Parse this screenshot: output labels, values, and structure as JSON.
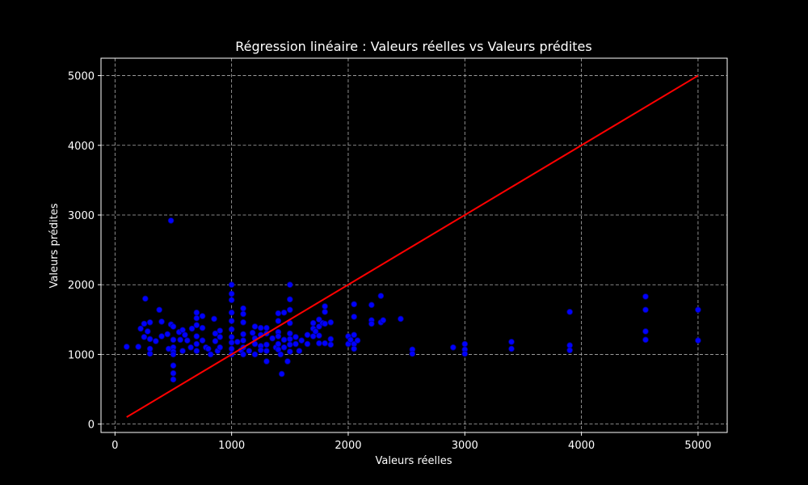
{
  "chart_data": {
    "type": "scatter",
    "title": "Régression linéaire : Valeurs réelles vs Valeurs prédites",
    "xlabel": "Valeurs réelles",
    "ylabel": "Valeurs prédites",
    "xlim": [
      -120,
      5250
    ],
    "ylim": [
      -120,
      5250
    ],
    "xticks": [
      0,
      1000,
      2000,
      3000,
      4000,
      5000
    ],
    "yticks": [
      0,
      1000,
      2000,
      3000,
      4000,
      5000
    ],
    "xtick_labels": [
      "0",
      "1000",
      "2000",
      "3000",
      "4000",
      "5000"
    ],
    "ytick_labels": [
      "0",
      "1000",
      "2000",
      "3000",
      "4000",
      "5000"
    ],
    "grid": true,
    "colors": {
      "background": "#000000",
      "points": "#0000ff",
      "point_edge": "#00008b",
      "line": "#ff0000",
      "text": "#ffffff"
    },
    "reference_line": {
      "name": "",
      "x": [
        100,
        5000
      ],
      "y": [
        100,
        5000
      ]
    },
    "series": [
      {
        "name": "",
        "points": [
          [
            100,
            1110
          ],
          [
            200,
            1110
          ],
          [
            220,
            1370
          ],
          [
            260,
            1800
          ],
          [
            250,
            1250
          ],
          [
            250,
            1440
          ],
          [
            280,
            1330
          ],
          [
            300,
            1220
          ],
          [
            300,
            1010
          ],
          [
            300,
            1460
          ],
          [
            300,
            1080
          ],
          [
            350,
            1190
          ],
          [
            380,
            1640
          ],
          [
            400,
            1470
          ],
          [
            400,
            1260
          ],
          [
            450,
            1290
          ],
          [
            460,
            1080
          ],
          [
            480,
            1430
          ],
          [
            480,
            2920
          ],
          [
            500,
            1400
          ],
          [
            500,
            1210
          ],
          [
            500,
            1100
          ],
          [
            500,
            840
          ],
          [
            500,
            730
          ],
          [
            500,
            640
          ],
          [
            500,
            1040
          ],
          [
            500,
            1000
          ],
          [
            550,
            1320
          ],
          [
            560,
            1210
          ],
          [
            580,
            1350
          ],
          [
            580,
            1050
          ],
          [
            600,
            1280
          ],
          [
            620,
            1200
          ],
          [
            650,
            1100
          ],
          [
            660,
            1370
          ],
          [
            700,
            1600
          ],
          [
            700,
            1520
          ],
          [
            700,
            1420
          ],
          [
            700,
            1260
          ],
          [
            700,
            1150
          ],
          [
            700,
            1050
          ],
          [
            750,
            1550
          ],
          [
            750,
            1380
          ],
          [
            750,
            1200
          ],
          [
            780,
            1100
          ],
          [
            800,
            1080
          ],
          [
            820,
            1000
          ],
          [
            850,
            1510
          ],
          [
            860,
            1300
          ],
          [
            860,
            1190
          ],
          [
            880,
            1050
          ],
          [
            900,
            1340
          ],
          [
            900,
            1250
          ],
          [
            900,
            1100
          ],
          [
            1000,
            2000
          ],
          [
            1000,
            1870
          ],
          [
            1000,
            1780
          ],
          [
            1000,
            1600
          ],
          [
            1000,
            1480
          ],
          [
            1000,
            1360
          ],
          [
            1000,
            1250
          ],
          [
            1000,
            1170
          ],
          [
            1000,
            1080
          ],
          [
            1000,
            1000
          ],
          [
            1050,
            1180
          ],
          [
            1080,
            1060
          ],
          [
            1100,
            1660
          ],
          [
            1100,
            1580
          ],
          [
            1100,
            1460
          ],
          [
            1100,
            1290
          ],
          [
            1100,
            1200
          ],
          [
            1100,
            1100
          ],
          [
            1100,
            1000
          ],
          [
            1150,
            1050
          ],
          [
            1180,
            1310
          ],
          [
            1200,
            1400
          ],
          [
            1200,
            1230
          ],
          [
            1200,
            1150
          ],
          [
            1200,
            1000
          ],
          [
            1250,
            1380
          ],
          [
            1250,
            1280
          ],
          [
            1250,
            1120
          ],
          [
            1250,
            1060
          ],
          [
            1300,
            1380
          ],
          [
            1300,
            1300
          ],
          [
            1300,
            1140
          ],
          [
            1300,
            1050
          ],
          [
            1300,
            900
          ],
          [
            1350,
            1230
          ],
          [
            1380,
            1100
          ],
          [
            1400,
            1590
          ],
          [
            1400,
            1480
          ],
          [
            1400,
            1320
          ],
          [
            1400,
            1260
          ],
          [
            1400,
            1150
          ],
          [
            1400,
            1070
          ],
          [
            1420,
            1000
          ],
          [
            1430,
            720
          ],
          [
            1450,
            1600
          ],
          [
            1450,
            1210
          ],
          [
            1450,
            1100
          ],
          [
            1480,
            900
          ],
          [
            1500,
            2000
          ],
          [
            1500,
            1790
          ],
          [
            1500,
            1640
          ],
          [
            1500,
            1450
          ],
          [
            1500,
            1300
          ],
          [
            1500,
            1220
          ],
          [
            1500,
            1140
          ],
          [
            1500,
            1040
          ],
          [
            1550,
            1250
          ],
          [
            1550,
            1150
          ],
          [
            1580,
            1050
          ],
          [
            1600,
            1200
          ],
          [
            1650,
            1280
          ],
          [
            1650,
            1150
          ],
          [
            1700,
            1450
          ],
          [
            1700,
            1370
          ],
          [
            1700,
            1260
          ],
          [
            1720,
            1330
          ],
          [
            1750,
            1500
          ],
          [
            1750,
            1400
          ],
          [
            1750,
            1270
          ],
          [
            1750,
            1160
          ],
          [
            1780,
            1450
          ],
          [
            1800,
            1690
          ],
          [
            1800,
            1610
          ],
          [
            1800,
            1440
          ],
          [
            1800,
            1160
          ],
          [
            1850,
            1460
          ],
          [
            1850,
            1220
          ],
          [
            1850,
            1140
          ],
          [
            2000,
            1260
          ],
          [
            2000,
            1150
          ],
          [
            2020,
            1210
          ],
          [
            2050,
            1720
          ],
          [
            2050,
            1540
          ],
          [
            2050,
            1280
          ],
          [
            2050,
            1150
          ],
          [
            2050,
            1080
          ],
          [
            2080,
            1200
          ],
          [
            2200,
            1710
          ],
          [
            2200,
            1490
          ],
          [
            2200,
            1440
          ],
          [
            2280,
            1840
          ],
          [
            2280,
            1460
          ],
          [
            2300,
            1490
          ],
          [
            2450,
            1510
          ],
          [
            2550,
            1070
          ],
          [
            2550,
            1010
          ],
          [
            2900,
            1100
          ],
          [
            3000,
            1150
          ],
          [
            3000,
            1070
          ],
          [
            3000,
            1010
          ],
          [
            3400,
            1180
          ],
          [
            3400,
            1080
          ],
          [
            3900,
            1610
          ],
          [
            3900,
            1130
          ],
          [
            3900,
            1060
          ],
          [
            4550,
            1830
          ],
          [
            4550,
            1640
          ],
          [
            4550,
            1330
          ],
          [
            4550,
            1210
          ],
          [
            5000,
            1640
          ],
          [
            5000,
            1200
          ]
        ]
      }
    ]
  }
}
